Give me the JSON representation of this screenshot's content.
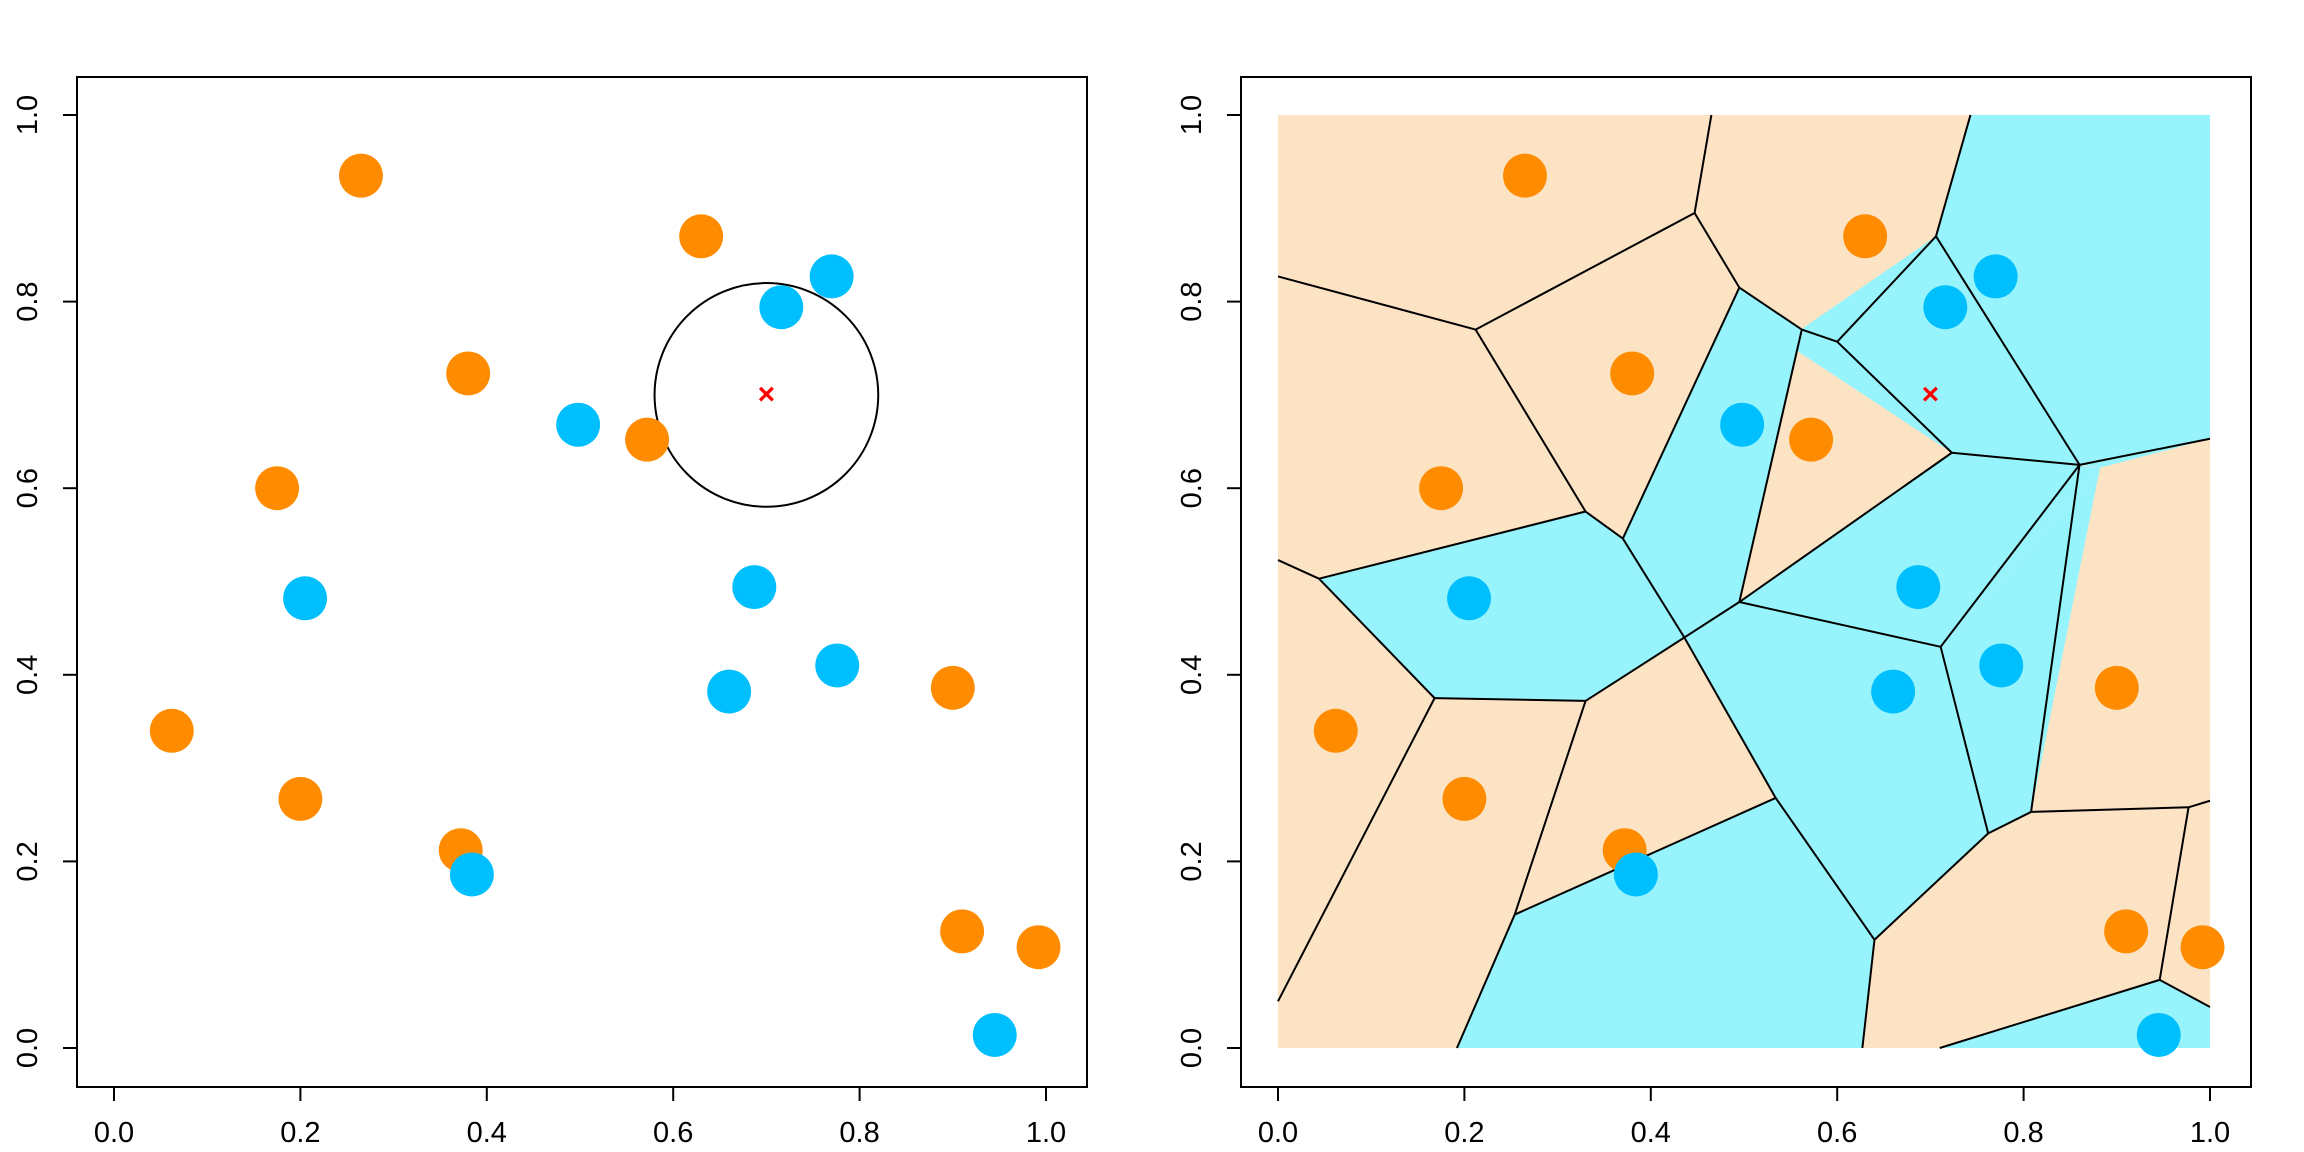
{
  "chart_data": [
    {
      "type": "scatter",
      "title": "",
      "xlabel": "",
      "ylabel": "",
      "xlim": [
        0,
        1
      ],
      "ylim": [
        0,
        1
      ],
      "grid": false,
      "x_ticks": [
        "0.0",
        "0.2",
        "0.4",
        "0.6",
        "0.8",
        "1.0"
      ],
      "y_ticks": [
        "0.0",
        "0.2",
        "0.4",
        "0.6",
        "0.8",
        "1.0"
      ],
      "series": [
        {
          "color": "#ff8c00",
          "points": [
            [
              0.265,
              0.935
            ],
            [
              0.63,
              0.87
            ],
            [
              0.38,
              0.723
            ],
            [
              0.572,
              0.652
            ],
            [
              0.175,
              0.6
            ],
            [
              0.062,
              0.34
            ],
            [
              0.9,
              0.386
            ],
            [
              0.2,
              0.267
            ],
            [
              0.372,
              0.212
            ],
            [
              0.91,
              0.125
            ],
            [
              0.992,
              0.108
            ]
          ]
        },
        {
          "color": "#00bfff",
          "points": [
            [
              0.77,
              0.827
            ],
            [
              0.716,
              0.794
            ],
            [
              0.498,
              0.668
            ],
            [
              0.205,
              0.482
            ],
            [
              0.687,
              0.494
            ],
            [
              0.776,
              0.41
            ],
            [
              0.66,
              0.382
            ],
            [
              0.384,
              0.186
            ],
            [
              0.945,
              0.014
            ]
          ]
        }
      ],
      "query_point": {
        "x": 0.7,
        "y": 0.7,
        "marker": "×",
        "color": "#ff0000"
      },
      "neighborhood_circle": {
        "center": [
          0.7,
          0.7
        ],
        "radius": 0.12
      }
    },
    {
      "type": "scatter",
      "title": "",
      "xlabel": "",
      "ylabel": "",
      "xlim": [
        0,
        1
      ],
      "ylim": [
        0,
        1
      ],
      "grid": false,
      "x_ticks": [
        "0.0",
        "0.2",
        "0.4",
        "0.6",
        "0.8",
        "1.0"
      ],
      "y_ticks": [
        "0.0",
        "0.2",
        "0.4",
        "0.6",
        "0.8",
        "1.0"
      ],
      "region_colors": {
        "orange": "#fce3c4",
        "blue": "#98f4fc"
      },
      "blue_regions": [
        [
          [
            0.706,
            0.87
          ],
          [
            0.743,
            1.0
          ],
          [
            1.0,
            1.0
          ],
          [
            1.0,
            0.653
          ],
          [
            0.882,
            0.622
          ],
          [
            0.86,
            0.625
          ]
        ],
        [
          [
            0.542,
            0.757
          ],
          [
            0.706,
            0.87
          ],
          [
            0.86,
            0.625
          ],
          [
            0.723,
            0.638
          ]
        ],
        [
          [
            0.495,
            0.815
          ],
          [
            0.562,
            0.77
          ],
          [
            0.495,
            0.478
          ],
          [
            0.436,
            0.44
          ],
          [
            0.37,
            0.546
          ]
        ],
        [
          [
            0.044,
            0.503
          ],
          [
            0.33,
            0.575
          ],
          [
            0.37,
            0.546
          ],
          [
            0.436,
            0.44
          ],
          [
            0.33,
            0.372
          ],
          [
            0.168,
            0.375
          ]
        ],
        [
          [
            0.495,
            0.478
          ],
          [
            0.723,
            0.638
          ],
          [
            0.882,
            0.622
          ],
          [
            0.711,
            0.43
          ]
        ],
        [
          [
            0.711,
            0.43
          ],
          [
            0.882,
            0.622
          ],
          [
            0.808,
            0.253
          ],
          [
            0.762,
            0.23
          ]
        ],
        [
          [
            0.436,
            0.44
          ],
          [
            0.495,
            0.478
          ],
          [
            0.711,
            0.43
          ],
          [
            0.762,
            0.23
          ],
          [
            0.64,
            0.116
          ],
          [
            0.534,
            0.268
          ]
        ],
        [
          [
            0.192,
            0.0
          ],
          [
            0.254,
            0.143
          ],
          [
            0.534,
            0.268
          ],
          [
            0.64,
            0.116
          ],
          [
            0.627,
            0.0
          ]
        ],
        [
          [
            0.71,
            0.0
          ],
          [
            0.946,
            0.073
          ],
          [
            1.0,
            0.044
          ],
          [
            1.0,
            0.0
          ]
        ]
      ],
      "voronoi_edges": [
        [
          [
            0.0,
            0.827
          ],
          [
            0.212,
            0.77
          ]
        ],
        [
          [
            0.212,
            0.77
          ],
          [
            0.447,
            0.895
          ]
        ],
        [
          [
            0.447,
            0.895
          ],
          [
            0.465,
            1.0
          ]
        ],
        [
          [
            0.447,
            0.895
          ],
          [
            0.495,
            0.815
          ]
        ],
        [
          [
            0.495,
            0.815
          ],
          [
            0.562,
            0.77
          ]
        ],
        [
          [
            0.562,
            0.77
          ],
          [
            0.6,
            0.757
          ]
        ],
        [
          [
            0.6,
            0.757
          ],
          [
            0.706,
            0.87
          ]
        ],
        [
          [
            0.706,
            0.87
          ],
          [
            0.743,
            1.0
          ]
        ],
        [
          [
            0.706,
            0.87
          ],
          [
            0.86,
            0.625
          ]
        ],
        [
          [
            0.6,
            0.757
          ],
          [
            0.723,
            0.638
          ]
        ],
        [
          [
            0.723,
            0.638
          ],
          [
            0.86,
            0.625
          ]
        ],
        [
          [
            0.86,
            0.625
          ],
          [
            1.0,
            0.653
          ]
        ],
        [
          [
            0.212,
            0.77
          ],
          [
            0.33,
            0.575
          ]
        ],
        [
          [
            0.495,
            0.815
          ],
          [
            0.37,
            0.546
          ]
        ],
        [
          [
            0.562,
            0.77
          ],
          [
            0.495,
            0.478
          ]
        ],
        [
          [
            0.723,
            0.638
          ],
          [
            0.495,
            0.478
          ]
        ],
        [
          [
            0.33,
            0.575
          ],
          [
            0.37,
            0.546
          ]
        ],
        [
          [
            0.33,
            0.575
          ],
          [
            0.044,
            0.503
          ]
        ],
        [
          [
            0.044,
            0.503
          ],
          [
            0.0,
            0.523
          ]
        ],
        [
          [
            0.044,
            0.503
          ],
          [
            0.168,
            0.375
          ]
        ],
        [
          [
            0.37,
            0.546
          ],
          [
            0.436,
            0.44
          ]
        ],
        [
          [
            0.436,
            0.44
          ],
          [
            0.495,
            0.478
          ]
        ],
        [
          [
            0.495,
            0.478
          ],
          [
            0.711,
            0.43
          ]
        ],
        [
          [
            0.711,
            0.43
          ],
          [
            0.86,
            0.625
          ]
        ],
        [
          [
            0.711,
            0.43
          ],
          [
            0.762,
            0.23
          ]
        ],
        [
          [
            0.86,
            0.625
          ],
          [
            0.808,
            0.253
          ]
        ],
        [
          [
            0.808,
            0.253
          ],
          [
            0.762,
            0.23
          ]
        ],
        [
          [
            0.436,
            0.44
          ],
          [
            0.33,
            0.372
          ]
        ],
        [
          [
            0.33,
            0.372
          ],
          [
            0.168,
            0.375
          ]
        ],
        [
          [
            0.168,
            0.375
          ],
          [
            0.0,
            0.05
          ]
        ],
        [
          [
            0.33,
            0.372
          ],
          [
            0.254,
            0.143
          ]
        ],
        [
          [
            0.254,
            0.143
          ],
          [
            0.192,
            0.0
          ]
        ],
        [
          [
            0.436,
            0.44
          ],
          [
            0.534,
            0.268
          ]
        ],
        [
          [
            0.254,
            0.143
          ],
          [
            0.534,
            0.268
          ]
        ],
        [
          [
            0.534,
            0.268
          ],
          [
            0.64,
            0.116
          ]
        ],
        [
          [
            0.64,
            0.116
          ],
          [
            0.627,
            0.0
          ]
        ],
        [
          [
            0.64,
            0.116
          ],
          [
            0.762,
            0.23
          ]
        ],
        [
          [
            0.808,
            0.253
          ],
          [
            0.977,
            0.258
          ]
        ],
        [
          [
            0.977,
            0.258
          ],
          [
            1.0,
            0.265
          ]
        ],
        [
          [
            0.977,
            0.258
          ],
          [
            0.946,
            0.073
          ]
        ],
        [
          [
            0.946,
            0.073
          ],
          [
            0.71,
            0.0
          ]
        ],
        [
          [
            0.946,
            0.073
          ],
          [
            1.0,
            0.044
          ]
        ]
      ],
      "series": [
        {
          "color": "#ff8c00",
          "points": [
            [
              0.265,
              0.935
            ],
            [
              0.63,
              0.87
            ],
            [
              0.38,
              0.723
            ],
            [
              0.572,
              0.652
            ],
            [
              0.175,
              0.6
            ],
            [
              0.062,
              0.34
            ],
            [
              0.9,
              0.386
            ],
            [
              0.2,
              0.267
            ],
            [
              0.372,
              0.212
            ],
            [
              0.91,
              0.125
            ],
            [
              0.992,
              0.108
            ]
          ]
        },
        {
          "color": "#00bfff",
          "points": [
            [
              0.77,
              0.827
            ],
            [
              0.716,
              0.794
            ],
            [
              0.498,
              0.668
            ],
            [
              0.205,
              0.482
            ],
            [
              0.687,
              0.494
            ],
            [
              0.776,
              0.41
            ],
            [
              0.66,
              0.382
            ],
            [
              0.384,
              0.186
            ],
            [
              0.945,
              0.014
            ]
          ]
        }
      ],
      "query_point": {
        "x": 0.7,
        "y": 0.7,
        "marker": "×",
        "color": "#ff0000"
      }
    }
  ]
}
